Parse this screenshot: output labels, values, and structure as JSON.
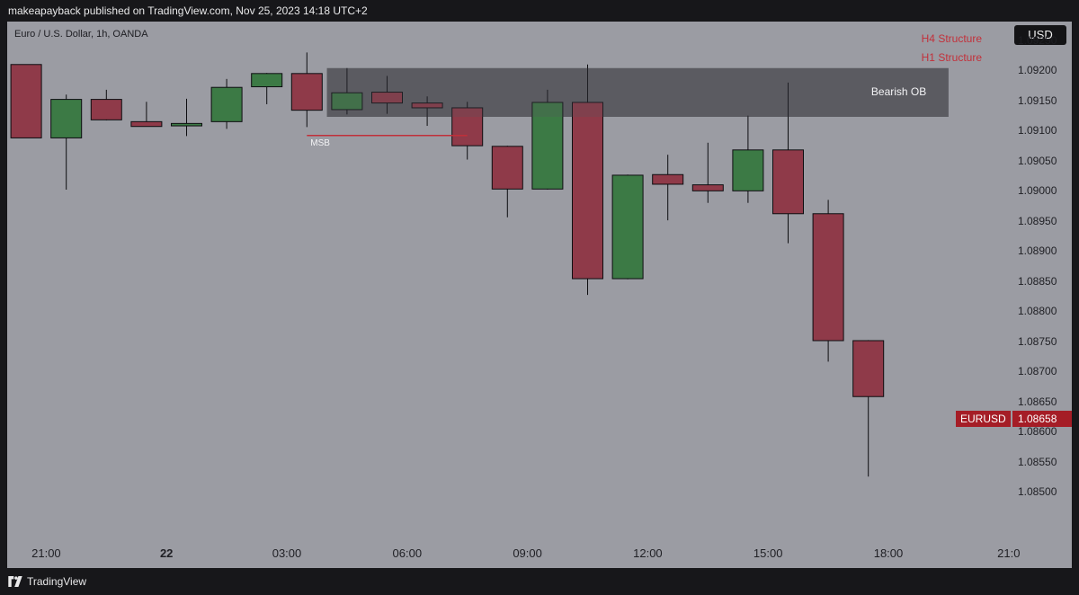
{
  "header": {
    "caption": "makeapayback published on TradingView.com, Nov 25, 2023 14:18 UTC+2"
  },
  "footer": {
    "brand": "TradingView",
    "logo_icon": "tradingview-logo-icon"
  },
  "chart_data": {
    "type": "candlestick",
    "title": "Euro / U.S. Dollar, 1h, OANDA",
    "currency_button": "USD",
    "colors": {
      "up": "#3c7a45",
      "down": "#8f3a49",
      "background": "#9b9ca3",
      "order_block": "#55555a",
      "msb_line": "#c0303a",
      "legend": "#c3303a",
      "price_tag": "#a51d26"
    },
    "legend": [
      "H4 Structure",
      "H1 Structure"
    ],
    "ylim": [
      1.0845,
      1.093
    ],
    "y_ticks": [
      "1.09250",
      "1.09200",
      "1.09150",
      "1.09100",
      "1.09050",
      "1.09000",
      "1.08950",
      "1.08900",
      "1.08850",
      "1.08800",
      "1.08750",
      "1.08700",
      "1.08650",
      "1.08600",
      "1.08550",
      "1.08500"
    ],
    "x_ticks": [
      {
        "label": "21:00",
        "bar": 0.5,
        "bold": false
      },
      {
        "label": "22",
        "bar": 3.5,
        "bold": true
      },
      {
        "label": "03:00",
        "bar": 6.5,
        "bold": false
      },
      {
        "label": "06:00",
        "bar": 9.5,
        "bold": false
      },
      {
        "label": "09:00",
        "bar": 12.5,
        "bold": false
      },
      {
        "label": "12:00",
        "bar": 15.5,
        "bold": false
      },
      {
        "label": "15:00",
        "bar": 18.5,
        "bold": false
      },
      {
        "label": "18:00",
        "bar": 21.5,
        "bold": false
      },
      {
        "label": "21:0",
        "bar": 24.5,
        "bold": false
      }
    ],
    "candles": [
      {
        "time": "20:00",
        "open": 1.0921,
        "high": 1.0921,
        "low": 1.09088,
        "close": 1.09088
      },
      {
        "time": "21:00",
        "open": 1.09088,
        "high": 1.0916,
        "low": 1.09002,
        "close": 1.09152
      },
      {
        "time": "22:00",
        "open": 1.09152,
        "high": 1.09168,
        "low": 1.09117,
        "close": 1.09118
      },
      {
        "time": "23:00",
        "open": 1.09115,
        "high": 1.09148,
        "low": 1.09108,
        "close": 1.09107
      },
      {
        "time": "00:00",
        "open": 1.09108,
        "high": 1.09153,
        "low": 1.09091,
        "close": 1.09112
      },
      {
        "time": "01:00",
        "open": 1.09115,
        "high": 1.09186,
        "low": 1.09103,
        "close": 1.09172
      },
      {
        "time": "02:00",
        "open": 1.09173,
        "high": 1.09196,
        "low": 1.09144,
        "close": 1.09195
      },
      {
        "time": "03:00",
        "open": 1.09195,
        "high": 1.0923,
        "low": 1.09106,
        "close": 1.09134
      },
      {
        "time": "04:00",
        "open": 1.09135,
        "high": 1.09204,
        "low": 1.09127,
        "close": 1.09163
      },
      {
        "time": "05:00",
        "open": 1.09164,
        "high": 1.09191,
        "low": 1.09128,
        "close": 1.09146
      },
      {
        "time": "06:00",
        "open": 1.09146,
        "high": 1.09157,
        "low": 1.09108,
        "close": 1.09138
      },
      {
        "time": "07:00",
        "open": 1.09138,
        "high": 1.09148,
        "low": 1.09052,
        "close": 1.09075
      },
      {
        "time": "08:00",
        "open": 1.09074,
        "high": 1.09075,
        "low": 1.08956,
        "close": 1.09003
      },
      {
        "time": "09:00",
        "open": 1.09003,
        "high": 1.09168,
        "low": 1.09002,
        "close": 1.09147
      },
      {
        "time": "10:00",
        "open": 1.09147,
        "high": 1.0921,
        "low": 1.08827,
        "close": 1.08854
      },
      {
        "time": "11:00",
        "open": 1.08854,
        "high": 1.09027,
        "low": 1.08853,
        "close": 1.09026
      },
      {
        "time": "12:00",
        "open": 1.09027,
        "high": 1.0906,
        "low": 1.08951,
        "close": 1.09011
      },
      {
        "time": "13:00",
        "open": 1.0901,
        "high": 1.0908,
        "low": 1.0898,
        "close": 1.09
      },
      {
        "time": "14:00",
        "open": 1.09,
        "high": 1.09125,
        "low": 1.0898,
        "close": 1.09068
      },
      {
        "time": "15:00",
        "open": 1.09068,
        "high": 1.0918,
        "low": 1.08913,
        "close": 1.08962
      },
      {
        "time": "16:00",
        "open": 1.08962,
        "high": 1.08985,
        "low": 1.08716,
        "close": 1.08751
      },
      {
        "time": "17:00",
        "open": 1.08751,
        "high": 1.08752,
        "low": 1.08525,
        "close": 1.08658
      }
    ],
    "order_block": {
      "label": "Bearish OB",
      "from_bar": 7.5,
      "to_bar": 23,
      "top": 1.09204,
      "bottom": 1.09123
    },
    "msb": {
      "label": "MSB",
      "from_bar": 7,
      "to_bar": 11,
      "price": 1.09092
    },
    "last_price": {
      "symbol": "EURUSD",
      "value": "1.08658"
    }
  }
}
